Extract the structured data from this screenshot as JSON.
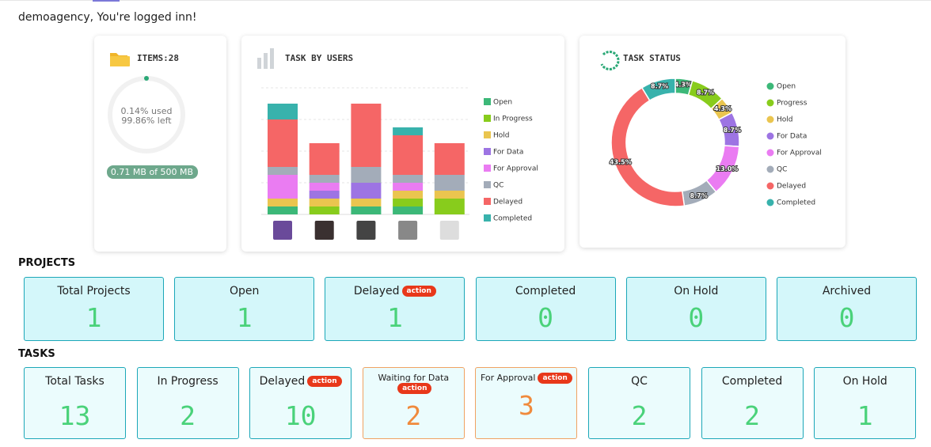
{
  "greeting": "demoagency, You're logged inn!",
  "storage": {
    "title": "ITEMS:28",
    "used": "0.14% used",
    "left": "99.86% left",
    "size": "0.71 MB of 500 MB"
  },
  "chart_data": [
    {
      "type": "bar",
      "stacked": true,
      "title": "TASK BY USERS",
      "categories": [
        null,
        null,
        null,
        null,
        null
      ],
      "ylim": [
        0,
        16
      ],
      "series": [
        {
          "name": "Open",
          "color": "#3cb878",
          "values": [
            1,
            0,
            1,
            1,
            0
          ]
        },
        {
          "name": "In Progress",
          "color": "#88cc1c",
          "values": [
            0,
            1,
            0,
            1,
            2
          ]
        },
        {
          "name": "Hold",
          "color": "#eac54f",
          "values": [
            1,
            1,
            1,
            1,
            1
          ]
        },
        {
          "name": "For Data",
          "color": "#9d74e3",
          "values": [
            0,
            1,
            2,
            0,
            0
          ]
        },
        {
          "name": "For Approval",
          "color": "#ea7cf2",
          "values": [
            3,
            1,
            0,
            1,
            0
          ]
        },
        {
          "name": "QC",
          "color": "#a3acb9",
          "values": [
            1,
            1,
            2,
            1,
            2
          ]
        },
        {
          "name": "Delayed",
          "color": "#f56666",
          "values": [
            6,
            4,
            8,
            5,
            4
          ]
        },
        {
          "name": "Completed",
          "color": "#38b2ac",
          "values": [
            2,
            0,
            0,
            1,
            0
          ]
        }
      ]
    },
    {
      "type": "pie",
      "donut": true,
      "title": "TASK STATUS",
      "categories": [
        "Open",
        "Progress",
        "Hold",
        "For Data",
        "For Approval",
        "QC",
        "Delayed",
        "Completed"
      ],
      "values": [
        4.3,
        8.7,
        4.3,
        8.7,
        13.0,
        8.7,
        43.5,
        8.7
      ],
      "value_labels": [
        "4.3%",
        "8.7%",
        "4.3%",
        "8.7%",
        "13.0%",
        "8.7%",
        "43.5%",
        "8.7%"
      ],
      "colors": [
        "#3cb878",
        "#88cc1c",
        "#eac54f",
        "#9d74e3",
        "#ea7cf2",
        "#a3acb9",
        "#f56666",
        "#38b2ac"
      ]
    }
  ],
  "projects": {
    "title": "PROJECTS",
    "cards": [
      {
        "label": "Total Projects",
        "value": 1
      },
      {
        "label": "Open",
        "value": 1
      },
      {
        "label": "Delayed",
        "badge": "action",
        "value": 1
      },
      {
        "label": "Completed",
        "value": 0
      },
      {
        "label": "On Hold",
        "value": 0
      },
      {
        "label": "Archived",
        "value": 0
      }
    ]
  },
  "tasks": {
    "title": "TASKS",
    "cards": [
      {
        "label": "Total Tasks",
        "value": 13
      },
      {
        "label": "In Progress",
        "value": 2
      },
      {
        "label": "Delayed",
        "badge": "action",
        "value": 10
      },
      {
        "label": "Waiting for Data",
        "badge": "action",
        "value": 2
      },
      {
        "label": "For Approval",
        "badge": "action",
        "value": 3
      },
      {
        "label": "QC",
        "value": 2
      },
      {
        "label": "Completed",
        "value": 2
      },
      {
        "label": "On Hold",
        "value": 1
      }
    ]
  }
}
